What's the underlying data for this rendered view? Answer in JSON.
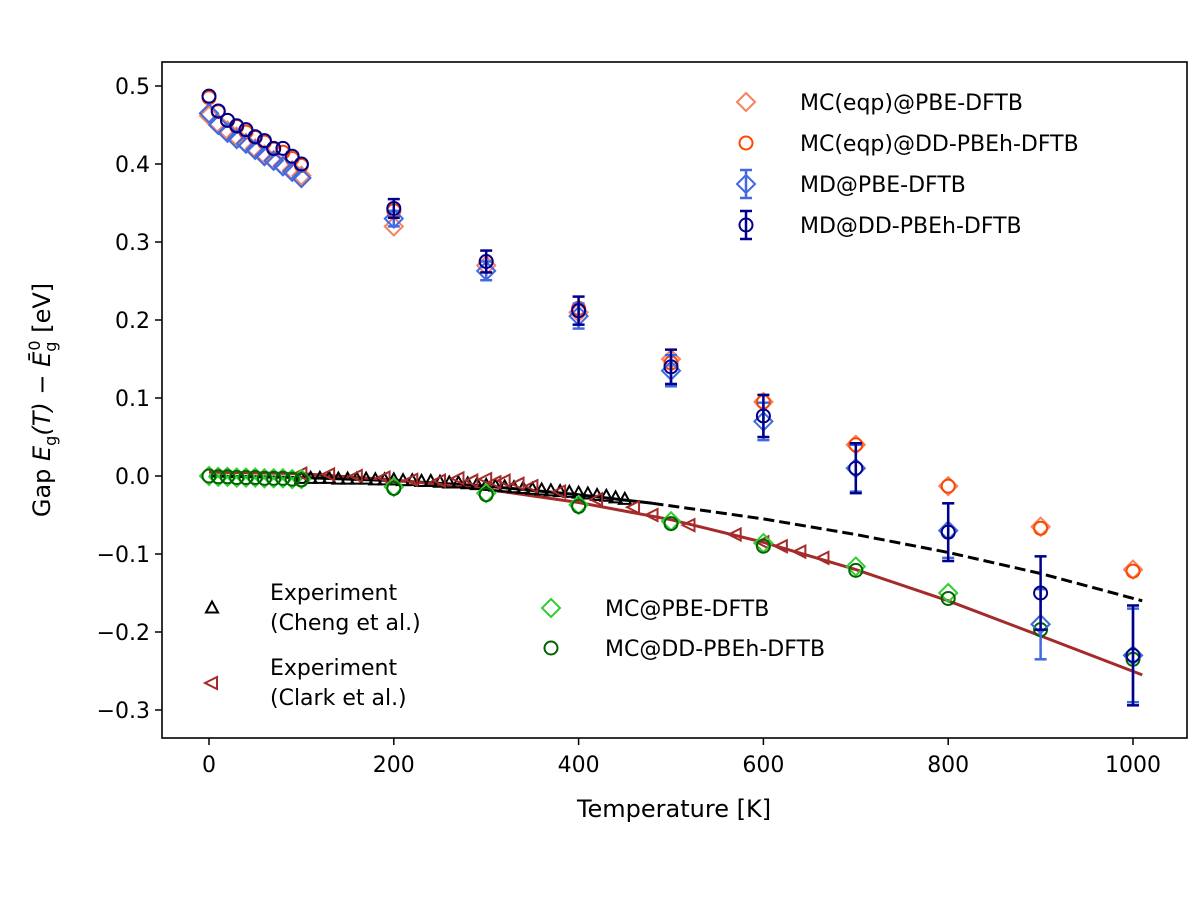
{
  "chart_data": {
    "type": "scatter",
    "xlabel": "Temperature [K]",
    "ylabel": {
      "prefix": "Gap ",
      "E": "E",
      "sub": "g",
      "T": "(T)",
      "minus": " − ",
      "Ebar": "Ē",
      "sub2": "g",
      "sup2": "0",
      "unit": " [eV]"
    },
    "xlim": [
      -50,
      1060
    ],
    "ylim": [
      -0.335,
      0.53
    ],
    "xticks": [
      0,
      200,
      400,
      600,
      800,
      1000
    ],
    "yticks": [
      0.5,
      0.4,
      0.3,
      0.2,
      0.1,
      0.0,
      -0.1,
      -0.2,
      -0.3
    ],
    "ytick_labels": [
      "0.5",
      "0.4",
      "0.3",
      "0.2",
      "0.1",
      "0.0",
      "−0.1",
      "−0.2",
      "−0.3"
    ],
    "grid": false,
    "legends": [
      {
        "placement": "top-right",
        "entries": [
          "MC(eqp)@PBE-DFTB",
          "MC(eqp)@DD-PBEh-DFTB",
          "MD@PBE-DFTB",
          "MD@DD-PBEh-DFTB"
        ]
      },
      {
        "placement": "bottom-left",
        "entries": [
          [
            "Experiment",
            "(Cheng et al.)"
          ],
          [
            "Experiment",
            "(Clark et al.)"
          ]
        ]
      },
      {
        "placement": "bottom-center",
        "entries": [
          "MC@PBE-DFTB",
          "MC@DD-PBEh-DFTB"
        ]
      }
    ],
    "series": [
      {
        "name": "MC(eqp)@PBE-DFTB",
        "marker": "diamond",
        "color": "#f4845f",
        "x": [
          0,
          10,
          20,
          30,
          40,
          50,
          60,
          70,
          80,
          90,
          100,
          200,
          300,
          400,
          500,
          600,
          700,
          800,
          900,
          1000
        ],
        "y": [
          0.462,
          0.452,
          0.443,
          0.435,
          0.427,
          0.42,
          0.412,
          0.405,
          0.398,
          0.392,
          0.385,
          0.32,
          0.27,
          0.21,
          0.15,
          0.095,
          0.04,
          -0.013,
          -0.065,
          -0.12
        ]
      },
      {
        "name": "MC(eqp)@DD-PBEh-DFTB",
        "marker": "circle",
        "color": "#ff4500",
        "x": [
          0,
          10,
          20,
          30,
          40,
          50,
          60,
          70,
          80,
          90,
          100,
          200,
          300,
          400,
          500,
          600,
          700,
          800,
          900,
          1000
        ],
        "y": [
          0.485,
          0.467,
          0.456,
          0.448,
          0.441,
          0.434,
          0.428,
          0.419,
          0.415,
          0.407,
          0.398,
          0.34,
          0.275,
          0.215,
          0.145,
          0.095,
          0.04,
          -0.013,
          -0.067,
          -0.122
        ]
      },
      {
        "name": "MD@PBE-DFTB",
        "marker": "diamond",
        "color": "#4169e1",
        "x": [
          0,
          10,
          20,
          30,
          40,
          50,
          60,
          70,
          80,
          90,
          100,
          200,
          300,
          400,
          500,
          600,
          700,
          800,
          900,
          1000
        ],
        "y": [
          0.465,
          0.45,
          0.44,
          0.432,
          0.426,
          0.418,
          0.41,
          0.404,
          0.397,
          0.39,
          0.382,
          0.33,
          0.263,
          0.205,
          0.135,
          0.07,
          0.01,
          -0.07,
          -0.19,
          -0.23
        ],
        "yerr": [
          0,
          0,
          0,
          0,
          0,
          0,
          0,
          0,
          0,
          0,
          0,
          0.01,
          0.012,
          0.016,
          0.02,
          0.024,
          0.03,
          0.035,
          0.045,
          0.06
        ]
      },
      {
        "name": "MD@DD-PBEh-DFTB",
        "marker": "circle",
        "color": "#00008b",
        "x": [
          0,
          10,
          20,
          30,
          40,
          50,
          60,
          70,
          80,
          90,
          100,
          200,
          300,
          400,
          500,
          600,
          700,
          800,
          900,
          1000
        ],
        "y": [
          0.487,
          0.468,
          0.456,
          0.449,
          0.444,
          0.435,
          0.43,
          0.42,
          0.42,
          0.41,
          0.4,
          0.343,
          0.275,
          0.212,
          0.14,
          0.077,
          0.01,
          -0.072,
          -0.15,
          -0.23
        ],
        "yerr": [
          0,
          0,
          0,
          0,
          0,
          0,
          0,
          0,
          0,
          0,
          0,
          0.012,
          0.014,
          0.018,
          0.022,
          0.027,
          0.032,
          0.037,
          0.047,
          0.064
        ]
      },
      {
        "name": "MC@PBE-DFTB",
        "marker": "diamond",
        "color": "#32cd32",
        "x": [
          0,
          10,
          20,
          30,
          40,
          50,
          60,
          70,
          80,
          90,
          100,
          200,
          300,
          400,
          500,
          600,
          700,
          800,
          900,
          1000
        ],
        "y": [
          0.0,
          -0.001,
          -0.001,
          -0.002,
          -0.002,
          -0.002,
          -0.003,
          -0.003,
          -0.003,
          -0.004,
          -0.004,
          -0.014,
          -0.022,
          -0.037,
          -0.058,
          -0.086,
          -0.116,
          -0.15,
          -0.19,
          -0.23
        ]
      },
      {
        "name": "MC@DD-PBEh-DFTB",
        "marker": "circle",
        "color": "#006400",
        "x": [
          0,
          10,
          20,
          30,
          40,
          50,
          60,
          70,
          80,
          90,
          100,
          200,
          300,
          400,
          500,
          600,
          700,
          800,
          900,
          1000
        ],
        "y": [
          0.0,
          -0.001,
          -0.001,
          -0.002,
          -0.002,
          -0.002,
          -0.003,
          -0.003,
          -0.003,
          -0.004,
          -0.005,
          -0.016,
          -0.024,
          -0.039,
          -0.061,
          -0.09,
          -0.121,
          -0.157,
          -0.197,
          -0.235
        ]
      },
      {
        "name": "Experiment (Cheng et al.)",
        "marker": "triangle-up",
        "color": "#000000",
        "x": [
          100,
          110,
          120,
          130,
          140,
          150,
          160,
          170,
          180,
          190,
          200,
          210,
          220,
          230,
          240,
          250,
          260,
          270,
          280,
          290,
          300,
          310,
          320,
          330,
          340,
          350,
          360,
          370,
          380,
          390,
          400,
          410,
          420,
          430,
          440,
          450
        ],
        "y": [
          -0.003,
          -0.003,
          -0.003,
          -0.003,
          -0.004,
          -0.004,
          -0.004,
          -0.004,
          -0.005,
          -0.005,
          -0.005,
          -0.006,
          -0.006,
          -0.007,
          -0.007,
          -0.008,
          -0.009,
          -0.009,
          -0.01,
          -0.011,
          -0.012,
          -0.013,
          -0.014,
          -0.015,
          -0.016,
          -0.017,
          -0.018,
          -0.019,
          -0.02,
          -0.021,
          -0.022,
          -0.023,
          -0.025,
          -0.026,
          -0.028,
          -0.03
        ]
      },
      {
        "name": "Experiment (Clark et al.)",
        "marker": "triangle-left",
        "color": "#a52a2a",
        "x": [
          100,
          130,
          160,
          190,
          220,
          250,
          270,
          285,
          300,
          310,
          320,
          335,
          350,
          380,
          420,
          460,
          480,
          520,
          570,
          600,
          620,
          640,
          665
        ],
        "y": [
          0.003,
          0.002,
          0.0,
          -0.002,
          -0.005,
          -0.006,
          -0.003,
          -0.006,
          -0.004,
          -0.008,
          -0.006,
          -0.01,
          -0.013,
          -0.02,
          -0.03,
          -0.04,
          -0.05,
          -0.063,
          -0.075,
          -0.085,
          -0.09,
          -0.097,
          -0.105
        ]
      }
    ],
    "fits": [
      {
        "color": "#000000",
        "style": "solid",
        "x": [
          0,
          100,
          200,
          300,
          400,
          480
        ],
        "y": [
          0.0,
          -0.002,
          -0.006,
          -0.013,
          -0.024,
          -0.035
        ]
      },
      {
        "color": "#000000",
        "style": "dashed",
        "x": [
          480,
          600,
          700,
          800,
          900,
          1010
        ],
        "y": [
          -0.035,
          -0.055,
          -0.075,
          -0.098,
          -0.125,
          -0.16
        ]
      },
      {
        "color": "#a52a2a",
        "style": "solid",
        "x": [
          0,
          100,
          200,
          300,
          400,
          500,
          600,
          700,
          800,
          900,
          1010
        ],
        "y": [
          0.005,
          0.003,
          -0.005,
          -0.017,
          -0.034,
          -0.056,
          -0.085,
          -0.12,
          -0.16,
          -0.205,
          -0.255
        ]
      }
    ]
  }
}
